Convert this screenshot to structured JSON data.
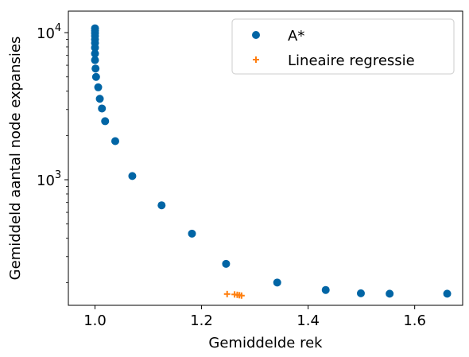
{
  "chart_data": {
    "type": "scatter",
    "title": "",
    "xlabel": "Gemiddelde rek",
    "ylabel": "Gemiddeld aantal node expansies",
    "xlim": [
      0.95,
      1.69
    ],
    "ylim": [
      140,
      14000
    ],
    "yscale": "log",
    "grid": false,
    "legend": "top-right",
    "x_ticks": [
      {
        "value": 1.0,
        "label": "1.0"
      },
      {
        "value": 1.2,
        "label": "1.2"
      },
      {
        "value": 1.4,
        "label": "1.4"
      },
      {
        "value": 1.6,
        "label": "1.6"
      }
    ],
    "y_ticks": [
      {
        "value": 1000,
        "label": "10",
        "exp": "3"
      },
      {
        "value": 10000,
        "label": "10",
        "exp": "4"
      }
    ],
    "series": [
      {
        "name": "A*",
        "marker": "circle",
        "color": "#0165a5",
        "x": [
          1.0,
          1.0,
          1.0,
          1.0,
          1.0,
          1.0,
          1.0,
          1.0,
          1.0,
          1.001,
          1.002,
          1.006,
          1.009,
          1.013,
          1.019,
          1.038,
          1.07,
          1.125,
          1.182,
          1.246,
          1.342,
          1.433,
          1.499,
          1.553,
          1.661
        ],
        "y": [
          10700,
          10300,
          9900,
          9500,
          9000,
          8500,
          7900,
          7200,
          6500,
          5700,
          5000,
          4250,
          3550,
          3050,
          2500,
          1830,
          1060,
          670,
          430,
          268,
          200,
          178,
          169,
          168,
          168
        ]
      },
      {
        "name": "Lineaire regressie",
        "marker": "plus",
        "color": "#ff7f0e",
        "x": [
          1.248,
          1.262,
          1.267,
          1.271,
          1.275
        ],
        "y": [
          167,
          166,
          165,
          164,
          163
        ]
      }
    ]
  }
}
